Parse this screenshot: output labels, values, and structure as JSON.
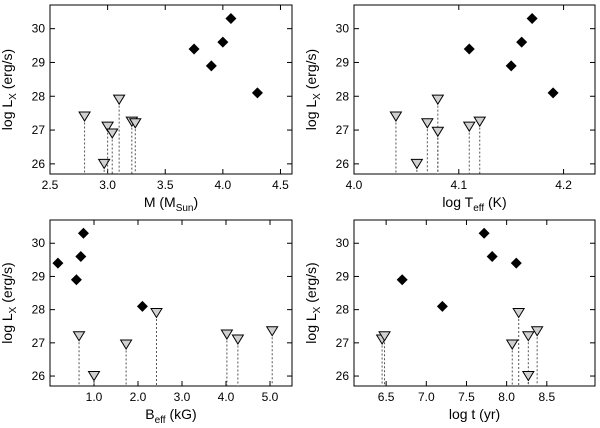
{
  "chart_data": [
    {
      "type": "scatter",
      "xlabel": "M (M",
      "xlabel_sub": "Sun",
      "xlabel_end": ")",
      "ylabel": "log L",
      "ylabel_sub": "X",
      "ylabel_end": " (erg/s)",
      "xlim": [
        2.5,
        4.6
      ],
      "ylim": [
        25.7,
        30.7
      ],
      "xticks": [
        "2.5",
        "3.0",
        "3.5",
        "4.0",
        "4.5"
      ],
      "yticks": [
        "26",
        "27",
        "28",
        "29",
        "30"
      ],
      "series": [
        {
          "name": "detections",
          "marker": "diamond",
          "points": [
            [
              3.75,
              29.4
            ],
            [
              3.9,
              28.9
            ],
            [
              4.0,
              29.6
            ],
            [
              4.07,
              30.3
            ],
            [
              4.3,
              28.1
            ]
          ]
        },
        {
          "name": "upper limits",
          "marker": "triangle-down",
          "points": [
            [
              2.8,
              27.4
            ],
            [
              2.97,
              26.0
            ],
            [
              3.0,
              27.1
            ],
            [
              3.04,
              26.9
            ],
            [
              3.1,
              27.9
            ],
            [
              3.21,
              27.25
            ],
            [
              3.24,
              27.2
            ]
          ]
        }
      ]
    },
    {
      "type": "scatter",
      "xlabel": "log T",
      "xlabel_sub": "eff",
      "xlabel_end": " (K)",
      "ylabel": "log L",
      "ylabel_sub": "X",
      "ylabel_end": " (erg/s)",
      "xlim": [
        4.0,
        4.23
      ],
      "ylim": [
        25.7,
        30.7
      ],
      "xticks": [
        "4.0",
        "4.1",
        "4.2"
      ],
      "yticks": [
        "26",
        "27",
        "28",
        "29",
        "30"
      ],
      "series": [
        {
          "name": "detections",
          "marker": "diamond",
          "points": [
            [
              4.11,
              29.4
            ],
            [
              4.15,
              28.9
            ],
            [
              4.16,
              29.6
            ],
            [
              4.17,
              30.3
            ],
            [
              4.19,
              28.1
            ]
          ]
        },
        {
          "name": "upper limits",
          "marker": "triangle-down",
          "points": [
            [
              4.04,
              27.4
            ],
            [
              4.06,
              26.0
            ],
            [
              4.07,
              27.2
            ],
            [
              4.08,
              27.9
            ],
            [
              4.08,
              26.95
            ],
            [
              4.11,
              27.1
            ],
            [
              4.12,
              27.25
            ]
          ]
        }
      ]
    },
    {
      "type": "scatter",
      "xlabel": "B",
      "xlabel_sub": "eff",
      "xlabel_end": " (kG)",
      "ylabel": "log L",
      "ylabel_sub": "X",
      "ylabel_end": " (erg/s)",
      "xlim": [
        0,
        5.5
      ],
      "ylim": [
        25.7,
        30.7
      ],
      "xticks": [
        "1.0",
        "2.0",
        "3.0",
        "4.0",
        "5.0"
      ],
      "yticks": [
        "26",
        "27",
        "28",
        "29",
        "30"
      ],
      "series": [
        {
          "name": "detections",
          "marker": "diamond",
          "points": [
            [
              0.18,
              29.4
            ],
            [
              0.6,
              28.9
            ],
            [
              0.7,
              29.6
            ],
            [
              0.76,
              30.3
            ],
            [
              2.1,
              28.1
            ]
          ]
        },
        {
          "name": "upper limits",
          "marker": "triangle-down",
          "points": [
            [
              0.66,
              27.2
            ],
            [
              1.0,
              26.0
            ],
            [
              1.73,
              26.95
            ],
            [
              2.42,
              27.9
            ],
            [
              4.02,
              27.25
            ],
            [
              4.27,
              27.1
            ],
            [
              5.05,
              27.35
            ]
          ]
        }
      ]
    },
    {
      "type": "scatter",
      "xlabel": "log t (yr)",
      "xlabel_sub": "",
      "xlabel_end": "",
      "ylabel": "log L",
      "ylabel_sub": "X",
      "ylabel_end": " (erg/s)",
      "xlim": [
        6.1,
        9.1
      ],
      "ylim": [
        25.7,
        30.7
      ],
      "xticks": [
        "6.5",
        "7.0",
        "7.5",
        "8.0",
        "8.5"
      ],
      "yticks": [
        "26",
        "27",
        "28",
        "29",
        "30"
      ],
      "series": [
        {
          "name": "detections",
          "marker": "diamond",
          "points": [
            [
              6.7,
              28.9
            ],
            [
              7.2,
              28.1
            ],
            [
              7.72,
              30.3
            ],
            [
              7.82,
              29.6
            ],
            [
              8.12,
              29.4
            ]
          ]
        },
        {
          "name": "upper limits",
          "marker": "triangle-down",
          "points": [
            [
              6.45,
              27.1
            ],
            [
              6.48,
              27.2
            ],
            [
              8.07,
              26.95
            ],
            [
              8.15,
              27.9
            ],
            [
              8.27,
              27.2
            ],
            [
              8.27,
              26.0
            ],
            [
              8.38,
              27.35
            ]
          ]
        }
      ]
    }
  ]
}
